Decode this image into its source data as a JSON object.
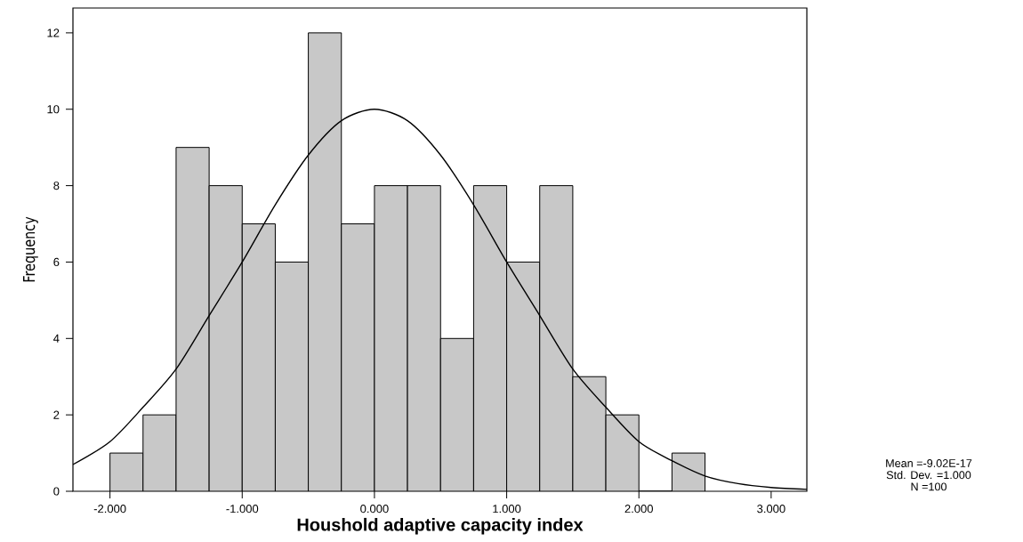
{
  "chart_data": {
    "type": "histogram",
    "xlabel": "Houshold adaptive capacity index",
    "ylabel": "Frequency",
    "bins": [
      -2.0,
      -1.75,
      -1.5,
      -1.25,
      -1.0,
      -0.75,
      -0.5,
      -0.25,
      0.0,
      0.25,
      0.5,
      0.75,
      1.0,
      1.25,
      1.5,
      1.75,
      2.0,
      2.25,
      2.5
    ],
    "values": [
      1,
      2,
      9,
      8,
      7,
      6,
      12,
      7,
      8,
      8,
      4,
      8,
      6,
      8,
      3,
      2,
      0,
      1
    ],
    "color": "#c8c8c8",
    "series": [
      {
        "type": "line",
        "color": "#000000",
        "x": [
          -2.28,
          -2.0,
          -1.75,
          -1.5,
          -1.25,
          -1.0,
          -0.75,
          -0.5,
          -0.25,
          0.0,
          0.25,
          0.5,
          0.75,
          1.0,
          1.25,
          1.5,
          1.75,
          2.0,
          2.25,
          2.5,
          2.75,
          3.0,
          3.27
        ],
        "values": [
          0.7,
          1.3,
          2.2,
          3.2,
          4.6,
          6.0,
          7.5,
          8.8,
          9.7,
          10.0,
          9.7,
          8.8,
          7.5,
          6.0,
          4.6,
          3.2,
          2.2,
          1.3,
          0.8,
          0.4,
          0.2,
          0.1,
          0.05
        ]
      }
    ],
    "xlim": [
      -2.28,
      3.27
    ],
    "ylim": [
      0,
      12.65
    ],
    "xticks": [
      {
        "value": -2,
        "label": "-2.000"
      },
      {
        "value": -1,
        "label": "-1.000"
      },
      {
        "value": 0,
        "label": "0.000"
      },
      {
        "value": 1,
        "label": "1.000"
      },
      {
        "value": 2,
        "label": "2.000"
      },
      {
        "value": 3,
        "label": "3.000"
      }
    ],
    "yticks": [
      0,
      2,
      4,
      6,
      8,
      10,
      12
    ],
    "annotations": [
      "Mean =-9.02E-17",
      "Std. Dev. =1.000",
      "N =100"
    ]
  }
}
